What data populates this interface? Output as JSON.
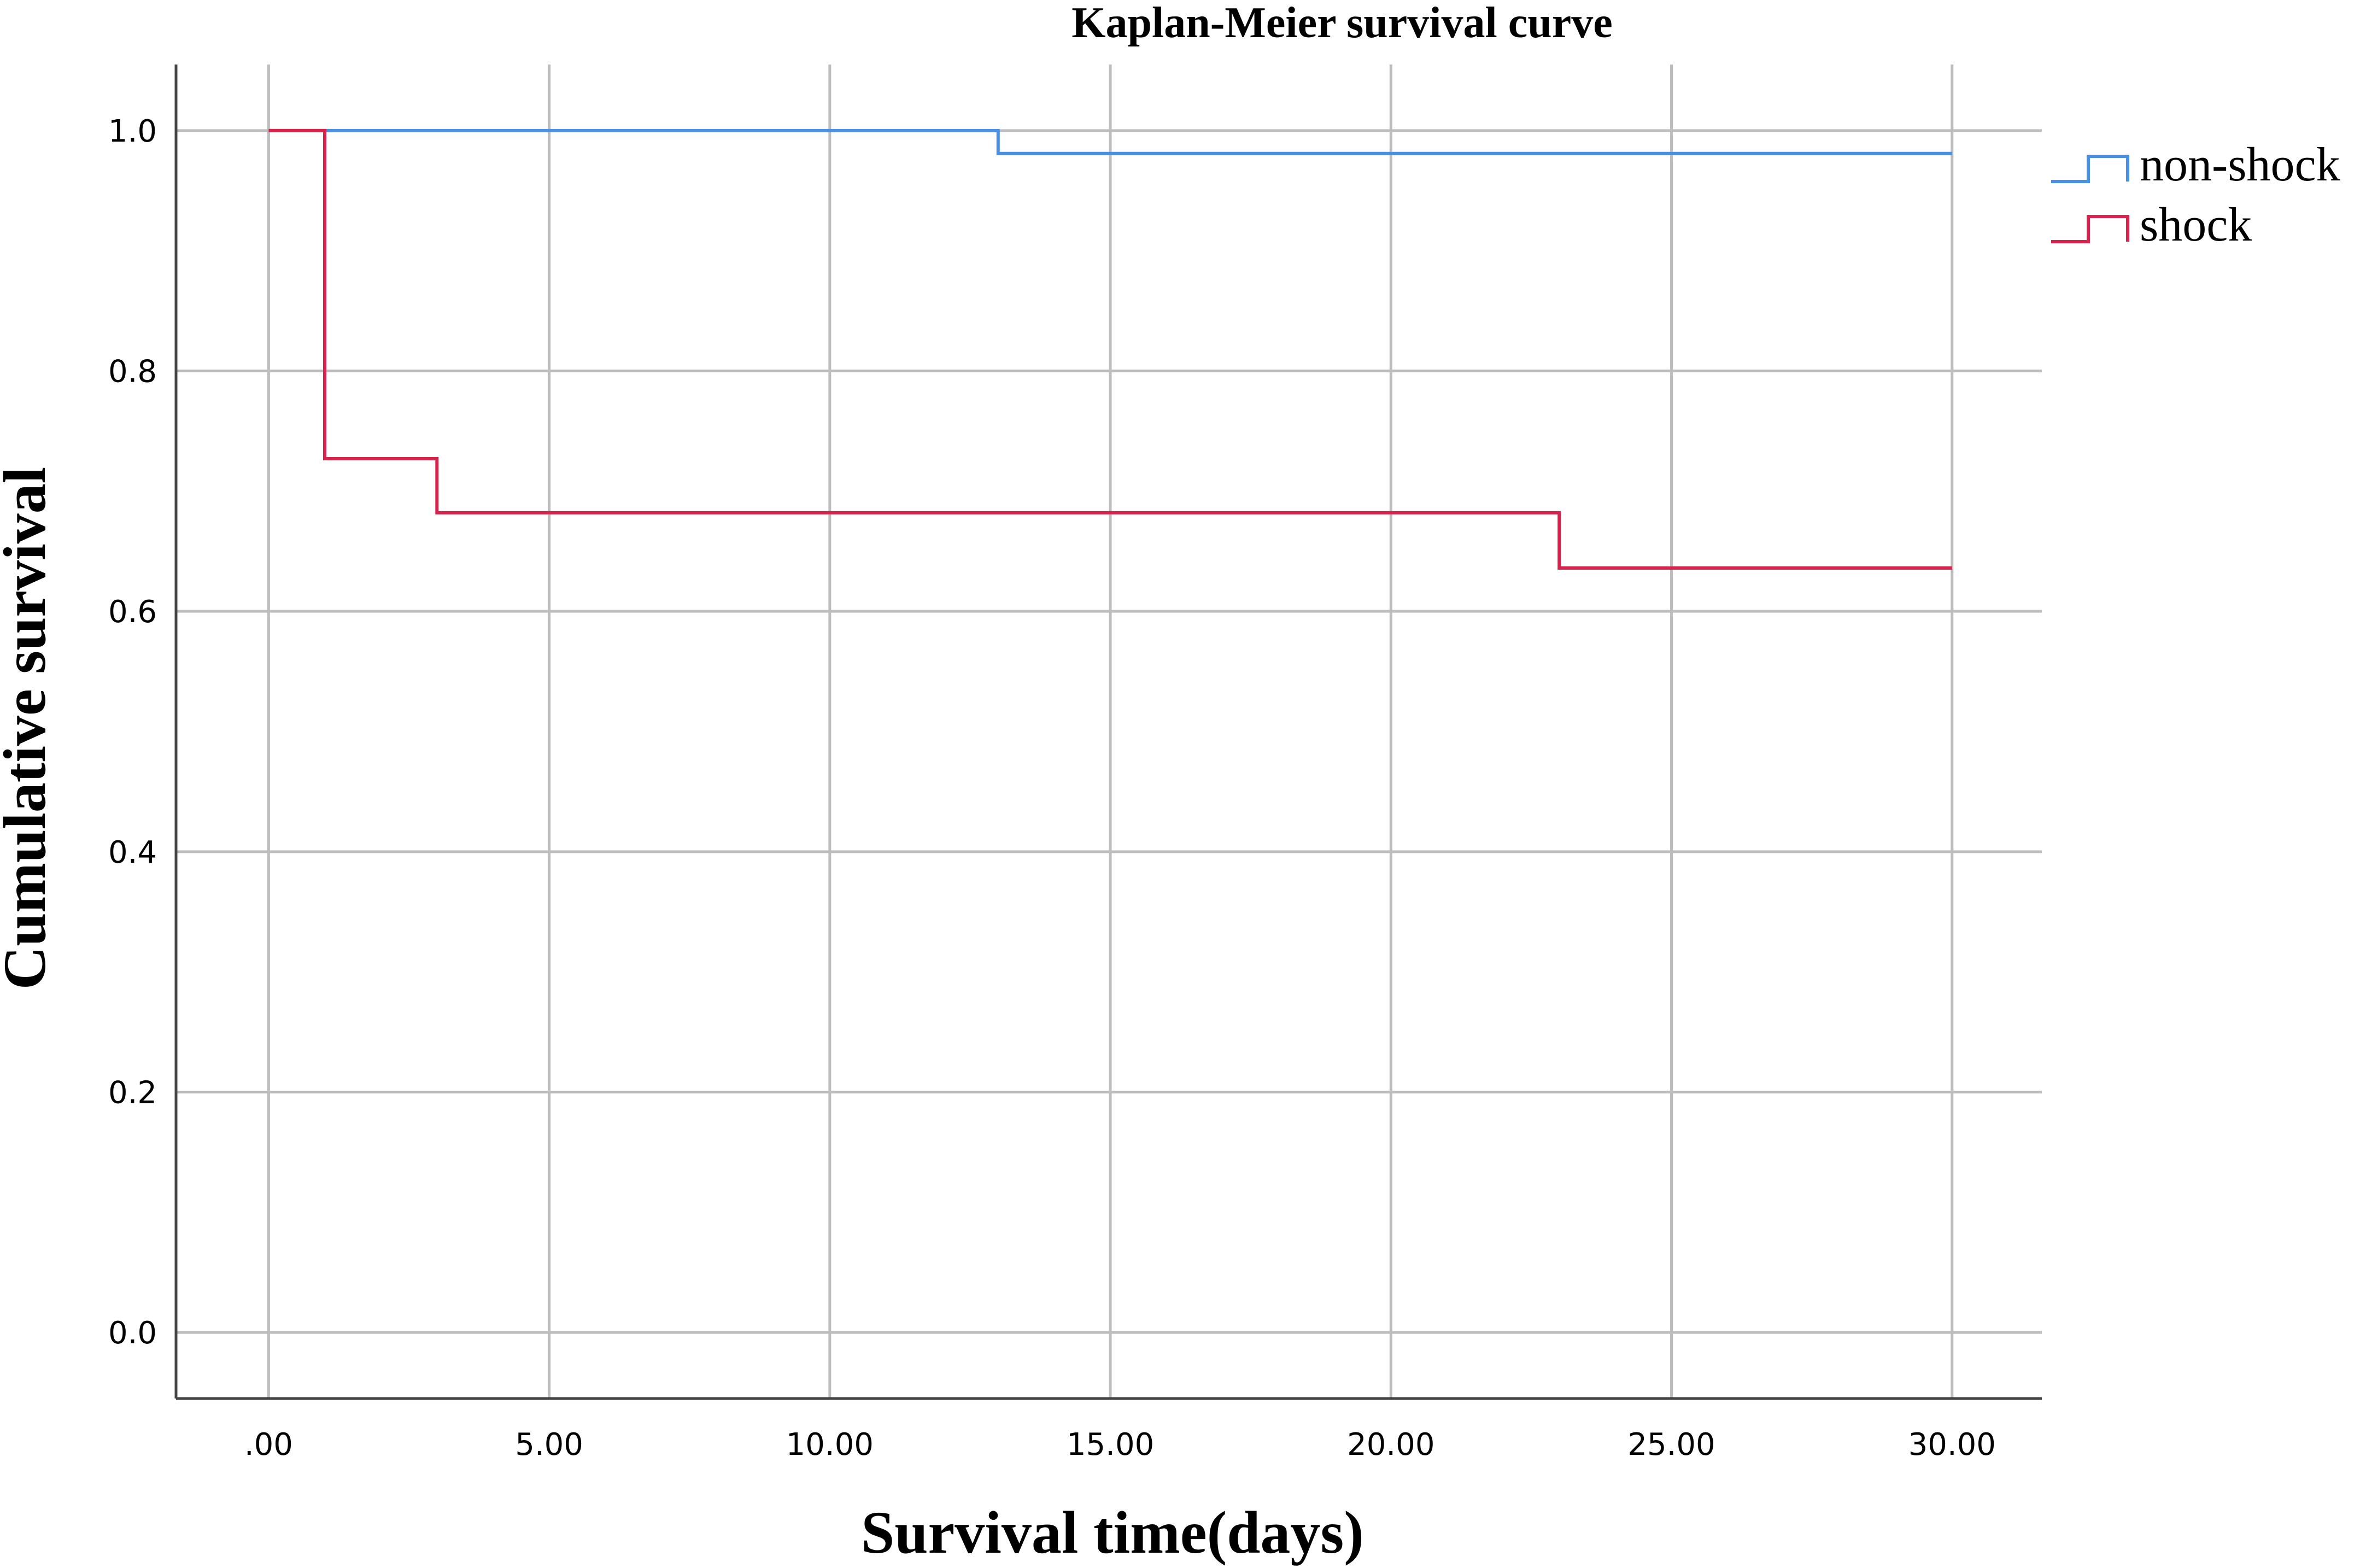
{
  "chart_data": {
    "type": "line",
    "step": true,
    "title": "Kaplan-Meier survival curve",
    "xlabel": "Survival time(days)",
    "ylabel": "Cumulative survival",
    "xlim": [
      -1.65,
      31.6
    ],
    "ylim": [
      -0.055,
      1.055
    ],
    "x_ticks": [
      0,
      5,
      10,
      15,
      20,
      25,
      30
    ],
    "x_tick_labels": [
      ".00",
      "5.00",
      "10.00",
      "15.00",
      "20.00",
      "25.00",
      "30.00"
    ],
    "y_ticks": [
      0.0,
      0.2,
      0.4,
      0.6,
      0.8,
      1.0
    ],
    "y_tick_labels": [
      "0.0",
      "0.2",
      "0.4",
      "0.6",
      "0.8",
      "1.0"
    ],
    "grid": true,
    "legend_position": "top-right",
    "series": [
      {
        "name": "non-shock",
        "color": "#4a90e2",
        "points": [
          [
            0,
            1.0
          ],
          [
            13,
            1.0
          ],
          [
            13,
            0.981
          ],
          [
            30,
            0.981
          ]
        ]
      },
      {
        "name": "shock",
        "color": "#d8244c",
        "points": [
          [
            0,
            1.0
          ],
          [
            1,
            1.0
          ],
          [
            1,
            0.727
          ],
          [
            3,
            0.727
          ],
          [
            3,
            0.682
          ],
          [
            23,
            0.682
          ],
          [
            23,
            0.636
          ],
          [
            30,
            0.636
          ]
        ]
      }
    ]
  }
}
